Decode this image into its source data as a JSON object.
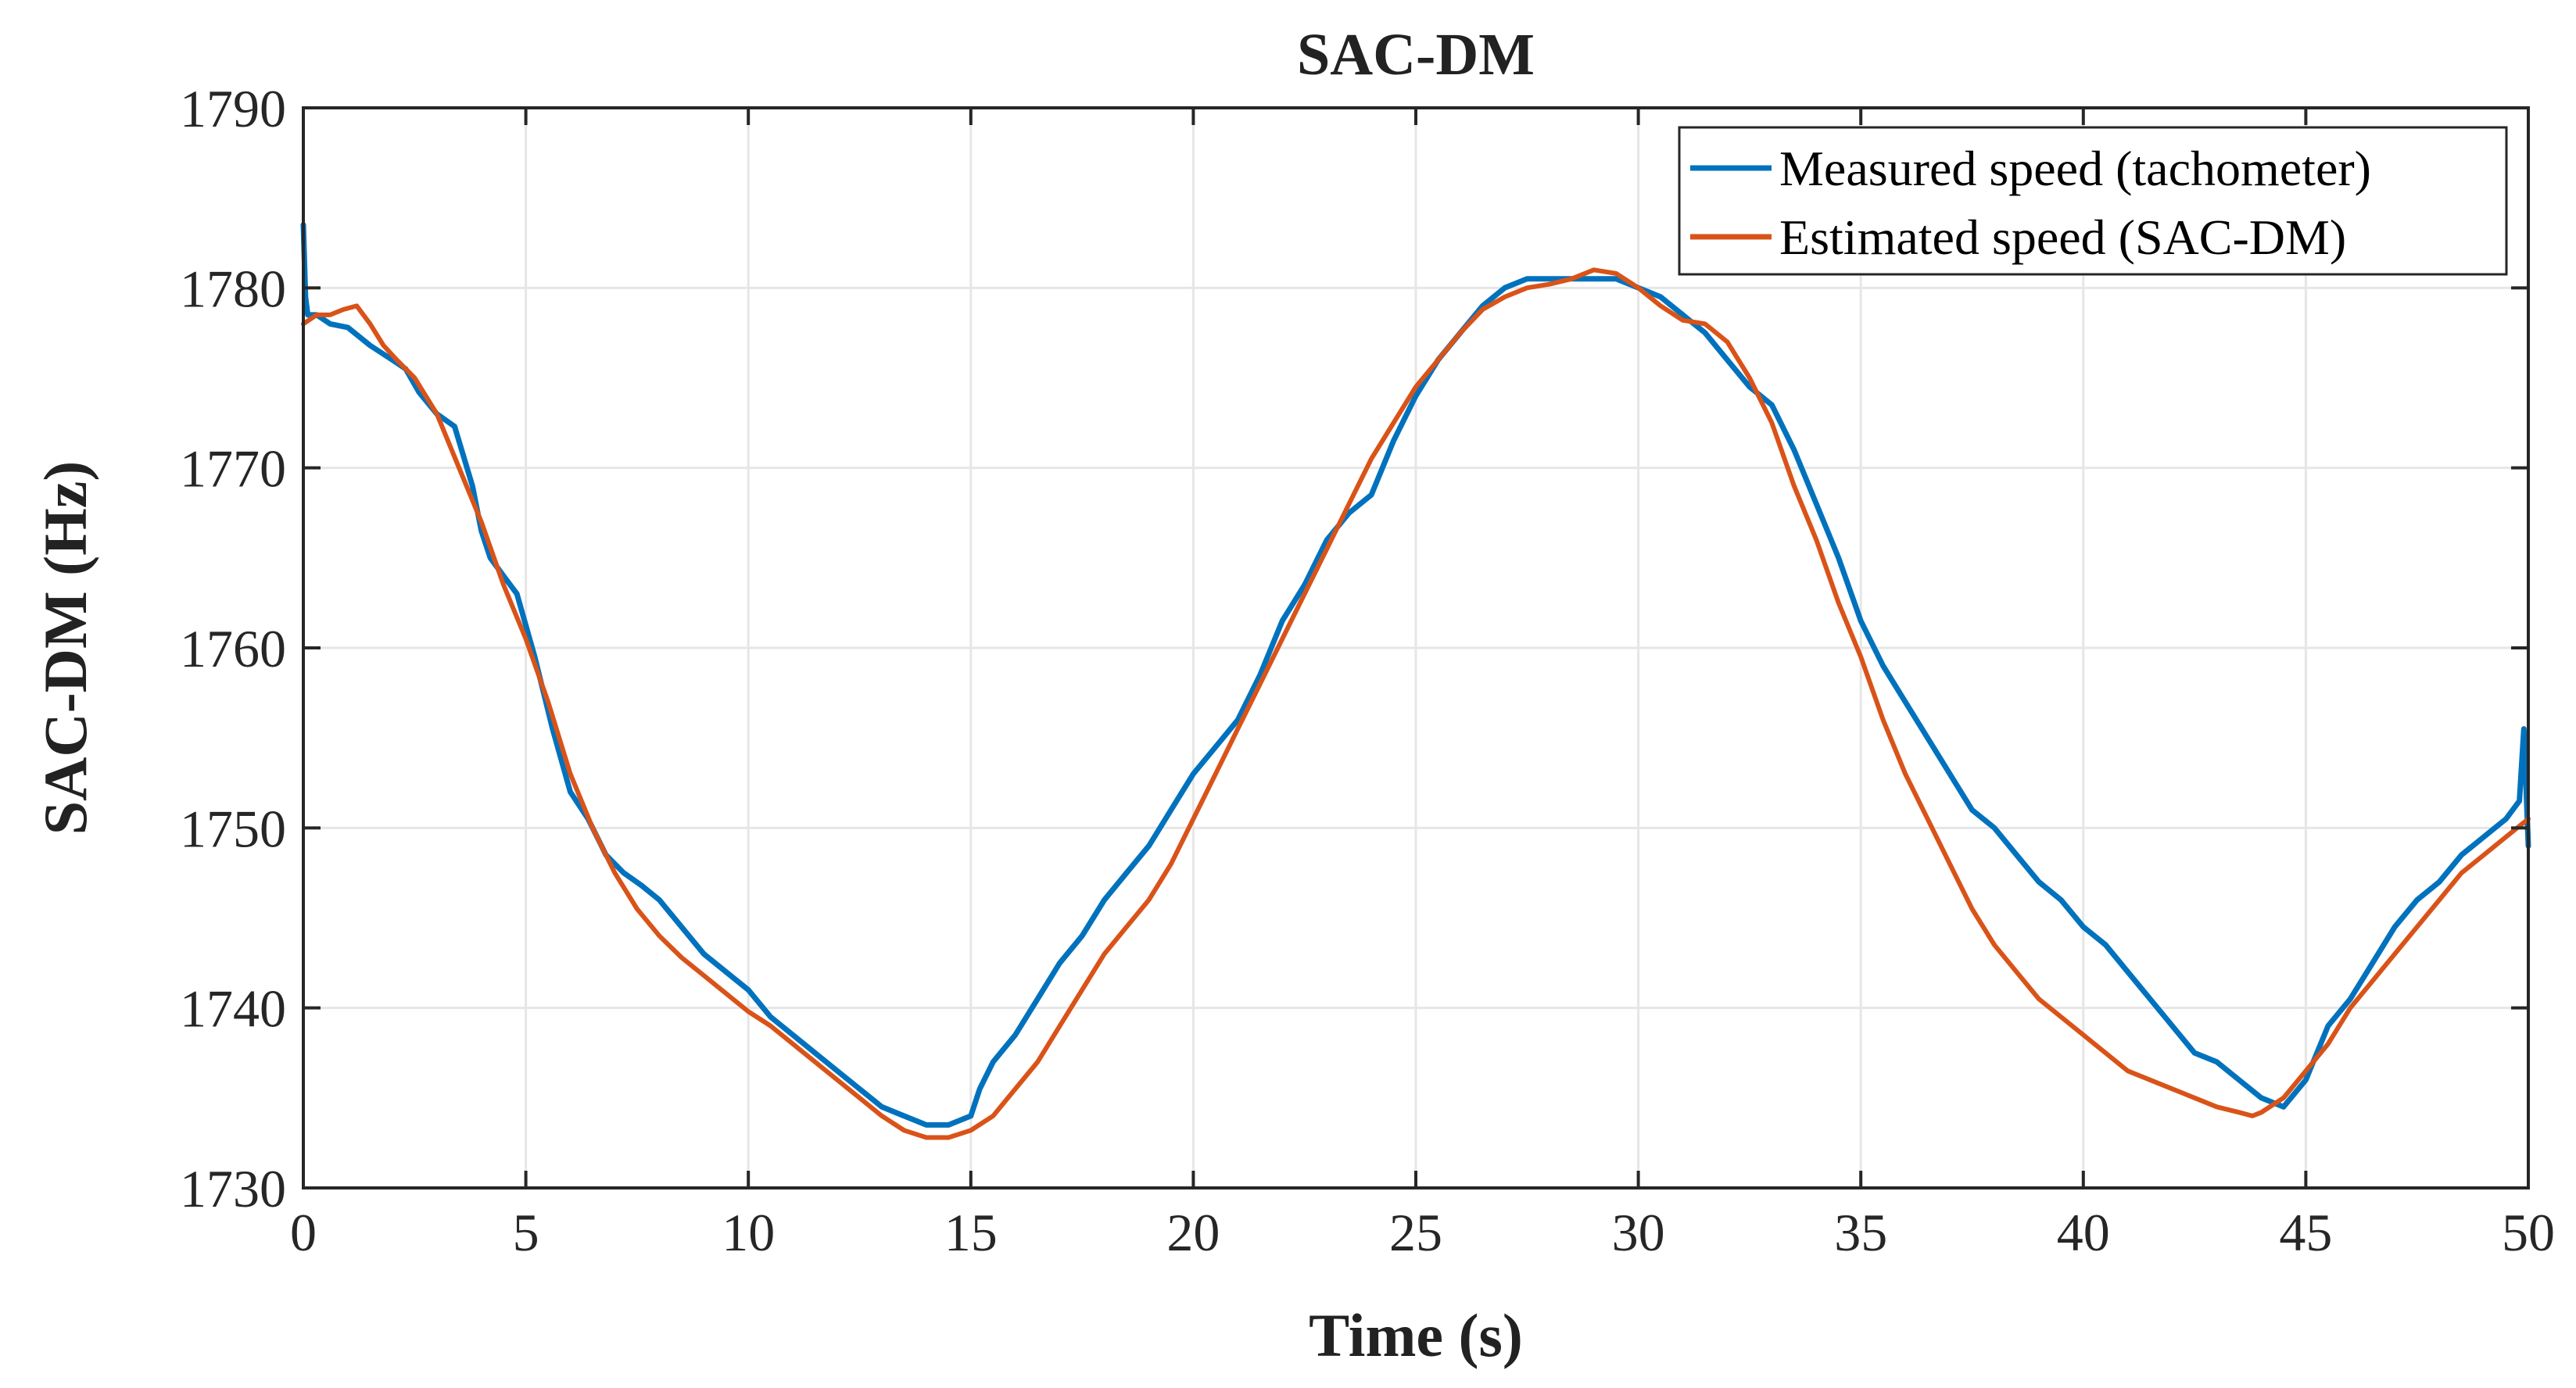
{
  "chart_data": {
    "type": "line",
    "title": "SAC-DM",
    "xlabel": "Time (s)",
    "ylabel": "SAC-DM (Hz)",
    "xlim": [
      0,
      50
    ],
    "ylim": [
      1730,
      1790
    ],
    "xticks": [
      0,
      5,
      10,
      15,
      20,
      25,
      30,
      35,
      40,
      45,
      50
    ],
    "yticks": [
      1730,
      1740,
      1750,
      1760,
      1770,
      1780,
      1790
    ],
    "grid": true,
    "legend_position": "top-right",
    "series": [
      {
        "name": "Measured speed (tachometer)",
        "color": "#0072BD",
        "x": [
          0,
          0.05,
          0.1,
          0.3,
          0.6,
          1.0,
          1.5,
          2.0,
          2.3,
          2.6,
          3.0,
          3.4,
          3.8,
          4.0,
          4.2,
          4.5,
          4.8,
          5.2,
          5.6,
          6.0,
          6.4,
          6.8,
          7.2,
          7.6,
          8.0,
          8.5,
          9.0,
          9.5,
          10.0,
          10.5,
          11.0,
          11.5,
          12.0,
          12.5,
          13.0,
          13.5,
          14.0,
          14.5,
          15.0,
          15.2,
          15.5,
          16.0,
          16.5,
          17.0,
          17.5,
          18.0,
          18.5,
          19.0,
          19.5,
          20.0,
          20.5,
          21.0,
          21.5,
          22.0,
          22.5,
          23.0,
          23.5,
          24.0,
          24.5,
          25.0,
          25.5,
          26.0,
          26.5,
          27.0,
          27.5,
          28.0,
          28.5,
          29.0,
          29.5,
          30.0,
          30.5,
          31.0,
          31.5,
          32.0,
          32.5,
          33.0,
          33.5,
          34.0,
          34.5,
          35.0,
          35.5,
          36.0,
          36.5,
          37.0,
          37.5,
          38.0,
          38.5,
          39.0,
          39.5,
          40.0,
          40.5,
          41.0,
          41.5,
          42.0,
          42.5,
          43.0,
          43.5,
          44.0,
          44.5,
          45.0,
          45.5,
          46.0,
          46.5,
          47.0,
          47.5,
          48.0,
          48.5,
          49.0,
          49.5,
          49.8,
          49.9,
          50.0
        ],
        "y": [
          1783.5,
          1779.5,
          1778.5,
          1778.5,
          1778.0,
          1777.8,
          1776.8,
          1776.0,
          1775.5,
          1774.2,
          1773.0,
          1772.3,
          1769.0,
          1766.5,
          1765.0,
          1764.0,
          1763.0,
          1759.5,
          1755.5,
          1752.0,
          1750.5,
          1748.5,
          1747.5,
          1746.8,
          1746.0,
          1744.5,
          1743.0,
          1742.0,
          1741.0,
          1739.5,
          1738.5,
          1737.5,
          1736.5,
          1735.5,
          1734.5,
          1734.0,
          1733.5,
          1733.5,
          1734.0,
          1735.5,
          1737.0,
          1738.5,
          1740.5,
          1742.5,
          1744.0,
          1746.0,
          1747.5,
          1749.0,
          1751.0,
          1753.0,
          1754.5,
          1756.0,
          1758.5,
          1761.5,
          1763.5,
          1766.0,
          1767.5,
          1768.5,
          1771.5,
          1774.0,
          1776.0,
          1777.5,
          1779.0,
          1780.0,
          1780.5,
          1780.5,
          1780.5,
          1780.5,
          1780.5,
          1780.0,
          1779.5,
          1778.5,
          1777.5,
          1776.0,
          1774.5,
          1773.5,
          1771.0,
          1768.0,
          1765.0,
          1761.5,
          1759.0,
          1757.0,
          1755.0,
          1753.0,
          1751.0,
          1750.0,
          1748.5,
          1747.0,
          1746.0,
          1744.5,
          1743.5,
          1742.0,
          1740.5,
          1739.0,
          1737.5,
          1737.0,
          1736.0,
          1735.0,
          1734.5,
          1736.0,
          1739.0,
          1740.5,
          1742.5,
          1744.5,
          1746.0,
          1747.0,
          1748.5,
          1749.5,
          1750.5,
          1751.5,
          1755.5,
          1749.0
        ]
      },
      {
        "name": "Estimated speed (SAC-DM)",
        "color": "#D95319",
        "x": [
          0,
          0.3,
          0.6,
          0.9,
          1.2,
          1.5,
          1.8,
          2.1,
          2.5,
          3.0,
          3.5,
          4.0,
          4.5,
          5.0,
          5.5,
          6.0,
          6.5,
          7.0,
          7.5,
          8.0,
          8.5,
          9.0,
          9.5,
          10.0,
          10.5,
          11.0,
          11.5,
          12.0,
          12.5,
          13.0,
          13.5,
          14.0,
          14.5,
          15.0,
          15.5,
          16.0,
          16.5,
          17.0,
          17.5,
          18.0,
          18.5,
          19.0,
          19.5,
          20.0,
          20.5,
          21.0,
          21.5,
          22.0,
          22.5,
          23.0,
          23.5,
          24.0,
          24.5,
          25.0,
          25.5,
          26.0,
          26.5,
          27.0,
          27.5,
          28.0,
          28.5,
          29.0,
          29.5,
          30.0,
          30.5,
          31.0,
          31.5,
          32.0,
          32.5,
          33.0,
          33.5,
          34.0,
          34.5,
          35.0,
          35.5,
          36.0,
          36.5,
          37.0,
          37.5,
          38.0,
          38.5,
          39.0,
          39.5,
          40.0,
          40.5,
          41.0,
          41.5,
          42.0,
          42.5,
          43.0,
          43.5,
          43.8,
          44.0,
          44.5,
          45.0,
          45.5,
          46.0,
          46.5,
          47.0,
          47.5,
          48.0,
          48.5,
          49.0,
          49.5,
          50.0
        ],
        "y": [
          1778.0,
          1778.5,
          1778.5,
          1778.8,
          1779.0,
          1778.0,
          1776.8,
          1776.0,
          1775.0,
          1773.0,
          1770.0,
          1767.0,
          1763.5,
          1760.5,
          1757.0,
          1753.0,
          1750.0,
          1747.5,
          1745.5,
          1744.0,
          1742.8,
          1741.8,
          1740.8,
          1739.8,
          1739.0,
          1738.0,
          1737.0,
          1736.0,
          1735.0,
          1734.0,
          1733.2,
          1732.8,
          1732.8,
          1733.2,
          1734.0,
          1735.5,
          1737.0,
          1739.0,
          1741.0,
          1743.0,
          1744.5,
          1746.0,
          1748.0,
          1750.5,
          1753.0,
          1755.5,
          1758.0,
          1760.5,
          1763.0,
          1765.5,
          1768.0,
          1770.5,
          1772.5,
          1774.5,
          1776.0,
          1777.5,
          1778.8,
          1779.5,
          1780.0,
          1780.2,
          1780.5,
          1781.0,
          1780.8,
          1780.0,
          1779.0,
          1778.2,
          1778.0,
          1777.0,
          1775.0,
          1772.5,
          1769.0,
          1766.0,
          1762.5,
          1759.5,
          1756.0,
          1753.0,
          1750.5,
          1748.0,
          1745.5,
          1743.5,
          1742.0,
          1740.5,
          1739.5,
          1738.5,
          1737.5,
          1736.5,
          1736.0,
          1735.5,
          1735.0,
          1734.5,
          1734.2,
          1734.0,
          1734.2,
          1735.0,
          1736.5,
          1738.0,
          1740.0,
          1741.5,
          1743.0,
          1744.5,
          1746.0,
          1747.5,
          1748.5,
          1749.5,
          1750.5
        ]
      }
    ]
  }
}
